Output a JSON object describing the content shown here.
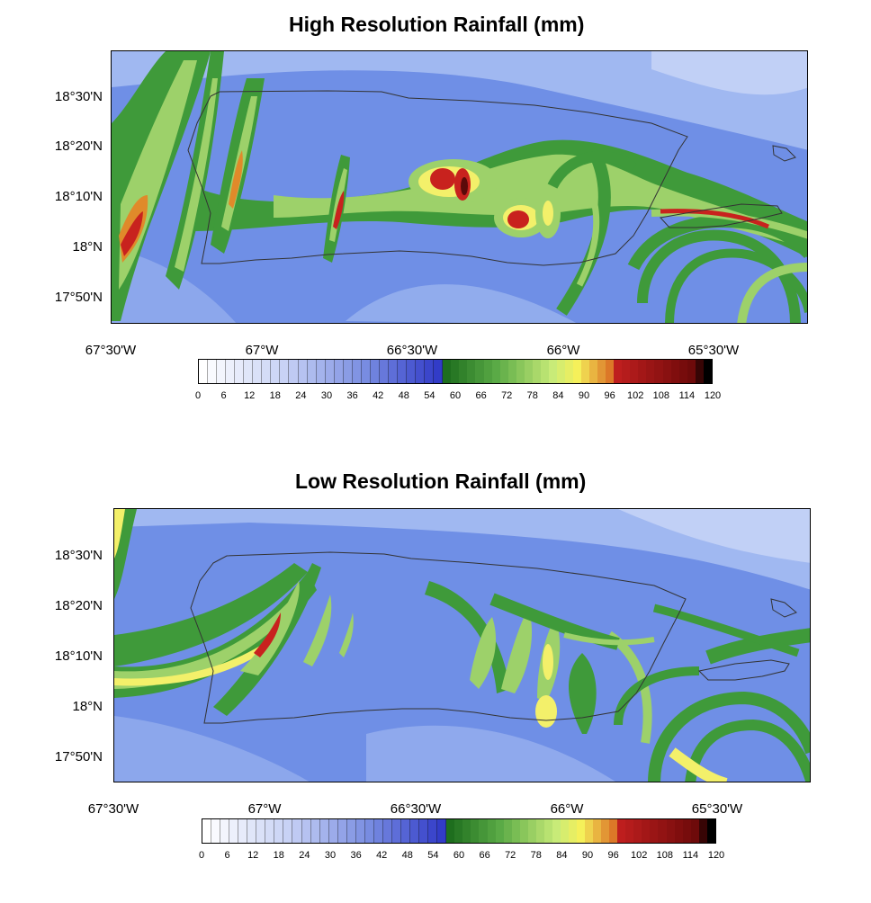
{
  "maps": [
    {
      "title": "High Resolution Rainfall (mm)",
      "lat_labels": [
        "18°30'N",
        "18°20'N",
        "18°10'N",
        "18°N",
        "17°50'N"
      ],
      "lon_labels": [
        "67°30'W",
        "67°W",
        "66°30'W",
        "66°W",
        "65°30'W"
      ]
    },
    {
      "title": "Low Resolution Rainfall (mm)",
      "lat_labels": [
        "18°30'N",
        "18°20'N",
        "18°10'N",
        "18°N",
        "17°50'N"
      ],
      "lon_labels": [
        "67°30'W",
        "67°W",
        "66°30'W",
        "66°W",
        "65°30'W"
      ]
    }
  ],
  "colorbar": {
    "labels": [
      "0",
      "6",
      "12",
      "18",
      "24",
      "30",
      "36",
      "42",
      "48",
      "54",
      "60",
      "66",
      "72",
      "78",
      "84",
      "90",
      "96",
      "102",
      "108",
      "114",
      "120"
    ],
    "min": 0,
    "max": 120,
    "step": 2
  },
  "colors": {
    "background_blue": "#6f8fe6",
    "light_blue": "#a9bff2",
    "green": "#3f9a3a",
    "light_green": "#9dd16a",
    "yellow": "#f3f06a",
    "orange": "#e08a2a",
    "red": "#c8221e",
    "coast": "#333333"
  }
}
